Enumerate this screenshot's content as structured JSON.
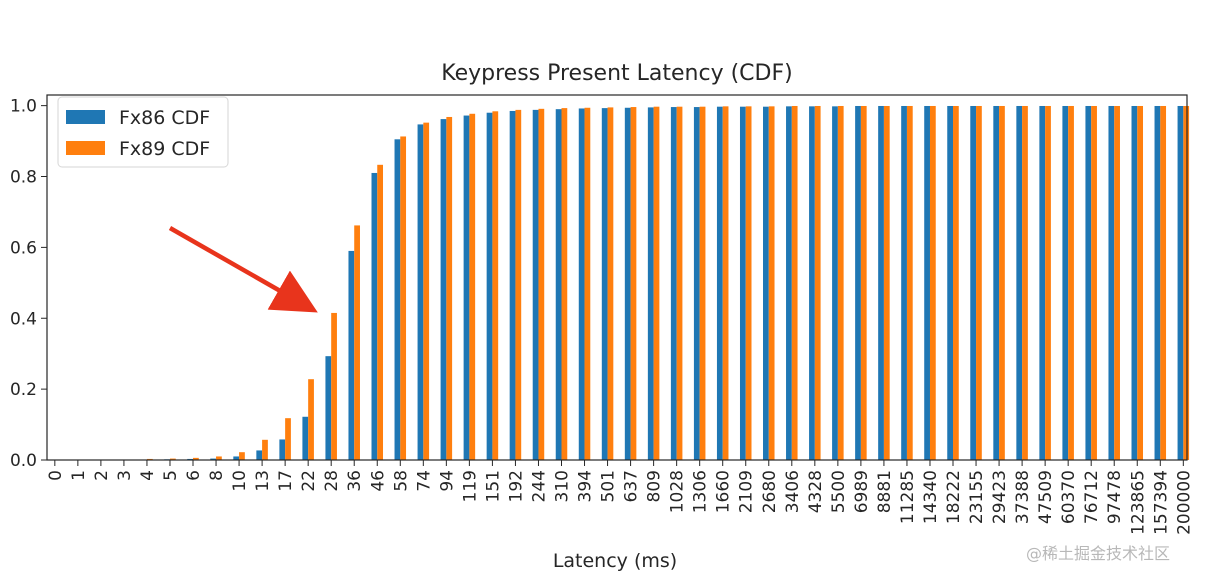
{
  "chart_data": {
    "type": "bar",
    "title": "Keypress Present Latency (CDF)",
    "xlabel": "Latency (ms)",
    "ylabel": "",
    "ylim": [
      0,
      1.03
    ],
    "yticks": [
      "0.0",
      "0.2",
      "0.4",
      "0.6",
      "0.8",
      "1.0"
    ],
    "legend_position": "top-left",
    "colors": {
      "fx86": "#1f77b4",
      "fx89": "#ff7f0e",
      "arrow": "#e8341c"
    },
    "categories": [
      "0",
      "1",
      "2",
      "3",
      "4",
      "5",
      "6",
      "8",
      "10",
      "13",
      "17",
      "22",
      "28",
      "36",
      "46",
      "58",
      "74",
      "94",
      "119",
      "151",
      "192",
      "244",
      "310",
      "394",
      "501",
      "637",
      "809",
      "1028",
      "1306",
      "1660",
      "2109",
      "2680",
      "3406",
      "4328",
      "5500",
      "6989",
      "8881",
      "11285",
      "14340",
      "18222",
      "23155",
      "29423",
      "37388",
      "47509",
      "60370",
      "76712",
      "97478",
      "123865",
      "157394",
      "200000"
    ],
    "series": [
      {
        "name": "Fx86 CDF",
        "values": [
          0.0,
          0.0,
          0.0,
          0.0,
          0.0,
          0.002,
          0.003,
          0.004,
          0.01,
          0.027,
          0.058,
          0.122,
          0.293,
          0.59,
          0.81,
          0.905,
          0.947,
          0.962,
          0.972,
          0.98,
          0.985,
          0.988,
          0.99,
          0.992,
          0.993,
          0.994,
          0.995,
          0.996,
          0.996,
          0.997,
          0.997,
          0.997,
          0.998,
          0.998,
          0.998,
          0.999,
          0.999,
          0.999,
          0.999,
          0.999,
          0.999,
          0.999,
          0.999,
          0.999,
          0.999,
          0.999,
          0.999,
          0.999,
          0.999,
          0.999
        ]
      },
      {
        "name": "Fx89 CDF",
        "values": [
          0.0,
          0.0,
          0.0,
          0.0,
          0.003,
          0.004,
          0.006,
          0.01,
          0.022,
          0.057,
          0.118,
          0.228,
          0.415,
          0.662,
          0.833,
          0.913,
          0.952,
          0.968,
          0.977,
          0.984,
          0.988,
          0.991,
          0.993,
          0.994,
          0.995,
          0.996,
          0.997,
          0.997,
          0.997,
          0.998,
          0.998,
          0.998,
          0.999,
          0.999,
          0.999,
          0.999,
          0.999,
          0.999,
          0.999,
          0.999,
          0.999,
          0.999,
          0.999,
          0.999,
          0.999,
          0.999,
          0.999,
          0.999,
          0.999,
          0.999
        ]
      }
    ],
    "annotations": [
      {
        "type": "arrow",
        "points_to": "28"
      }
    ]
  },
  "watermark": "@稀土掘金技术社区"
}
